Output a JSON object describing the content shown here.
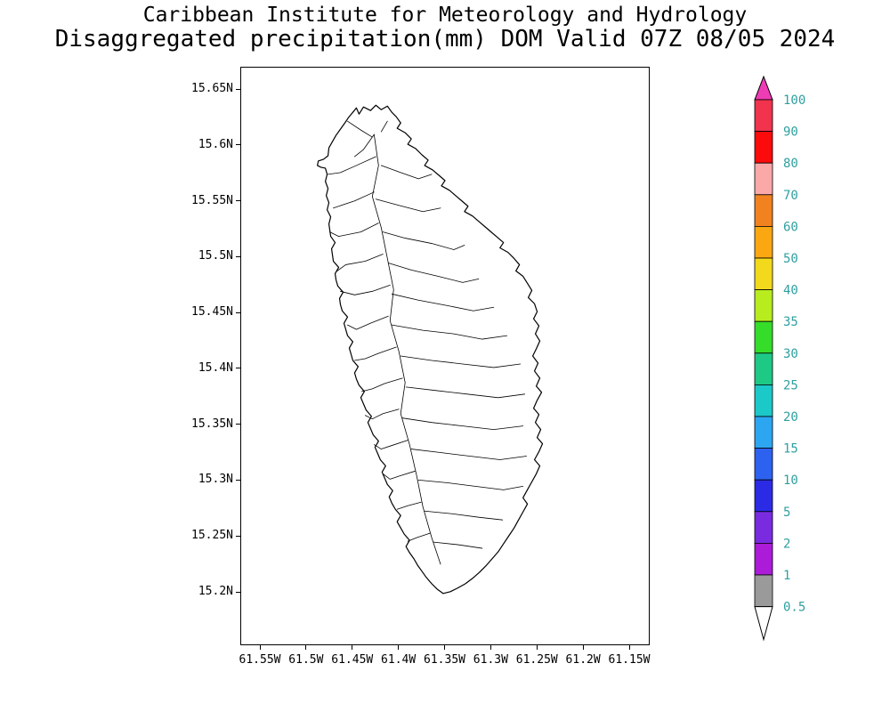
{
  "title": {
    "line1": "Caribbean Institute for Meteorology and Hydrology",
    "line2": "Disaggregated precipitation(mm) DOM Valid 07Z 08/05 2024"
  },
  "axes": {
    "lat_labels": [
      "15.65N",
      "15.6N",
      "15.55N",
      "15.5N",
      "15.45N",
      "15.4N",
      "15.35N",
      "15.3N",
      "15.25N",
      "15.2N"
    ],
    "lon_labels": [
      "61.55W",
      "61.5W",
      "61.45W",
      "61.4W",
      "61.35W",
      "61.3W",
      "61.25W",
      "61.2W",
      "61.15W"
    ]
  },
  "map": {
    "region_name": "Dominica watershed map",
    "outline_color": "#000000",
    "background_color": "#ffffff"
  },
  "colorbar": {
    "unit": "mm",
    "label_color": "#2f9f9f",
    "tick_labels": [
      "100",
      "90",
      "80",
      "70",
      "60",
      "50",
      "40",
      "35",
      "30",
      "25",
      "20",
      "15",
      "10",
      "5",
      "2",
      "1",
      "0.5"
    ],
    "segment_colors_top_to_bottom": [
      "#f1334d",
      "#fb0b0b",
      "#fba8a8",
      "#f1821f",
      "#fba712",
      "#f2d91c",
      "#b8ec1f",
      "#35dd2a",
      "#1dc985",
      "#1cc9c9",
      "#2da6f2",
      "#2d62f0",
      "#2b2be6",
      "#7a2be0",
      "#ab1bd8",
      "#9a9a9a"
    ],
    "top_arrow_color": "#ee3cb4",
    "bottom_arrow_color": "#ffffff",
    "outline_color": "#000000"
  }
}
